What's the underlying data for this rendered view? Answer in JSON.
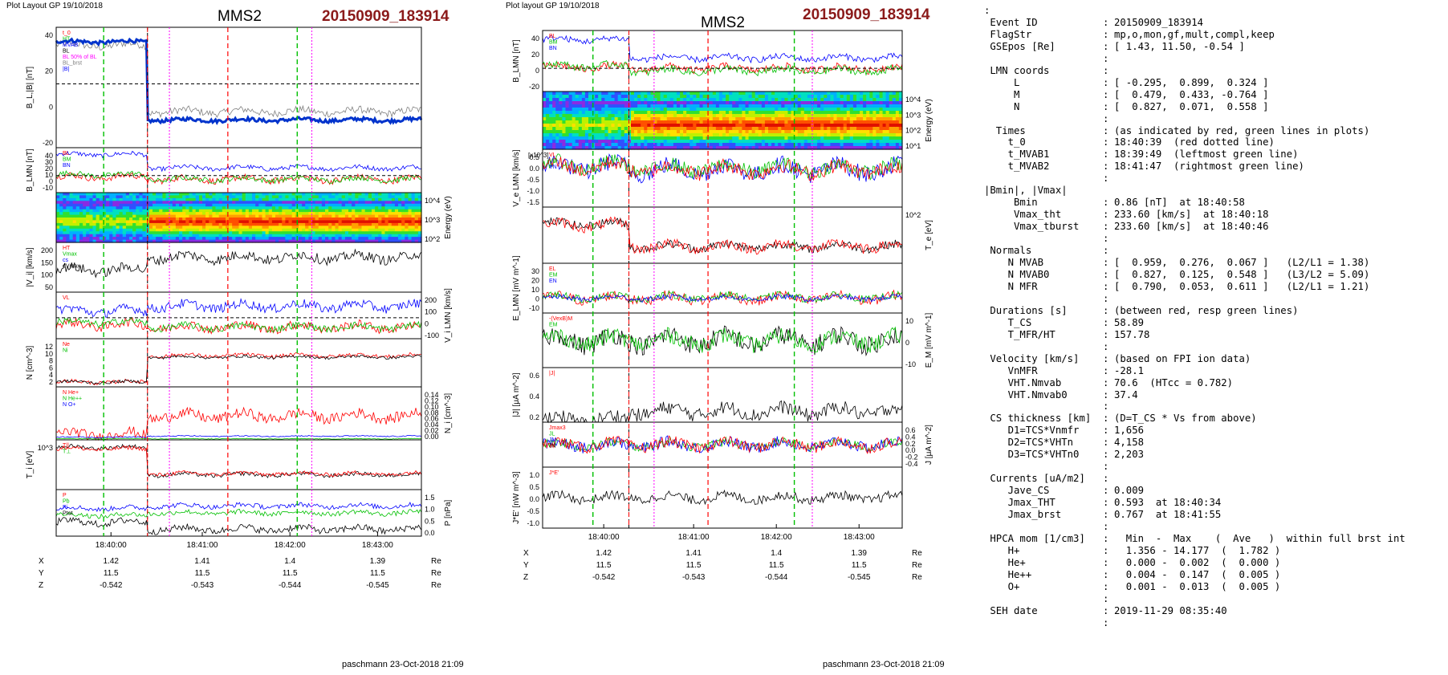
{
  "left_figure": {
    "layout_label": "Plot Layout GP 19/10/2018",
    "spacecraft": "MMS2",
    "event": "20150909_183914",
    "footer": "paschmann 23-Oct-2018 21:09"
  },
  "middle_figure": {
    "layout_label": "Plot layout GP 19/10/2018",
    "spacecraft": "MMS2",
    "event": "20150909_183914",
    "footer": "paschmann 23-Oct-2018 21:09"
  },
  "colors": {
    "red": "#ff0000",
    "green": "#00c000",
    "blue": "#0000ff",
    "black": "#000000",
    "magenta": "#ff00ff",
    "gray": "#808080",
    "thick_blue": "#0033cc",
    "event_title": "#8b1a1a"
  },
  "time_ticks": [
    "18:40:00",
    "18:41:00",
    "18:42:00",
    "18:43:00"
  ],
  "ephemeris": {
    "rows": [
      {
        "name": "X",
        "values": [
          "1.42",
          "1.41",
          "1.4",
          "1.39"
        ],
        "unit": "Re"
      },
      {
        "name": "Y",
        "values": [
          "11.5",
          "11.5",
          "11.5",
          "11.5"
        ],
        "unit": "Re"
      },
      {
        "name": "Z",
        "values": [
          "-0.542",
          "-0.543",
          "-0.544",
          "-0.545"
        ],
        "unit": "Re"
      }
    ]
  },
  "chart_data": [
    {
      "type": "line",
      "panels": [
        {
          "ylabel": "B_L,|B| [nT]",
          "yticks": [
            "40",
            "20",
            "0",
            "-20"
          ],
          "legend": [
            "t_0",
            "HT",
            "MVAB",
            "BL",
            "BL 50% of BL",
            "BL_brst",
            "|B|"
          ]
        },
        {
          "ylabel": "B_LMN [nT]",
          "yticks": [
            "40",
            "30",
            "20",
            "10",
            "0",
            "-10"
          ],
          "legend": [
            "BL",
            "BM",
            "BN"
          ]
        },
        {
          "ylabel": "Energy (eV)",
          "yticks_right": [
            "10^4",
            "10^3",
            "10^2"
          ]
        },
        {
          "ylabel": "|V_i| [km/s]",
          "yticks": [
            "200",
            "150",
            "100",
            "50"
          ],
          "legend": [
            "HT",
            "Vmax",
            "cs",
            "dVmax"
          ]
        },
        {
          "ylabel": "V_i LMN [km/s]",
          "yticks_right": [
            "200",
            "100",
            "0",
            "-100"
          ],
          "legend": [
            "VL"
          ]
        },
        {
          "ylabel": "N [cm^-3]",
          "yticks": [
            "12",
            "10",
            "8",
            "6",
            "4",
            "2"
          ],
          "legend": [
            "Ne",
            "Ni"
          ]
        },
        {
          "ylabel": "N_i [cm^-3]",
          "yticks_right": [
            "0.14",
            "0.12",
            "0.10",
            "0.08",
            "0.06",
            "0.04",
            "0.02",
            "0.00"
          ],
          "legend": [
            "N He+",
            "N He++",
            "N O+"
          ]
        },
        {
          "ylabel": "T_i [eV]",
          "yticks": [
            "10^3"
          ],
          "legend": [
            "T||",
            "T⊥"
          ]
        },
        {
          "ylabel": "P [nPa]",
          "yticks_right": [
            "1.5",
            "1.0",
            "0.5",
            "0.0"
          ],
          "legend": [
            "P",
            "Pb",
            "Pi",
            "Ptot"
          ]
        }
      ]
    },
    {
      "type": "line",
      "panels": [
        {
          "ylabel": "B_LMN [nT]",
          "yticks": [
            "40",
            "20",
            "0",
            "-20"
          ],
          "legend": [
            "BL",
            "BM",
            "BN"
          ]
        },
        {
          "ylabel": "Energy (eV)",
          "yticks_right": [
            "10^4",
            "10^3",
            "10^2",
            "10^1"
          ]
        },
        {
          "ylabel": "V_e LMN [km/s]",
          "scale_label": "[x10^3]",
          "yticks": [
            "0.5",
            "0.0",
            "-0.5",
            "-1.0",
            "-1.5"
          ],
          "legend": [
            "VL",
            "VM",
            "VN"
          ]
        },
        {
          "ylabel": "T_e [eV]",
          "yticks_right": [
            "10^2"
          ]
        },
        {
          "ylabel": "E_LMN [mV m^-1]",
          "yticks": [
            "30",
            "20",
            "10",
            "0",
            "-10"
          ],
          "legend": [
            "EL",
            "EM",
            "EN"
          ]
        },
        {
          "ylabel": "E_M [mV m^-1]",
          "yticks_right": [
            "10",
            "0",
            "-10"
          ],
          "legend": [
            "-(VexB)M",
            "EM"
          ]
        },
        {
          "ylabel": "|J| [μA m^-2]",
          "yticks": [
            "0.6",
            "0.4",
            "0.2"
          ],
          "legend": [
            "|J|"
          ]
        },
        {
          "ylabel": "J [μA m^-2]",
          "yticks_right": [
            "0.6",
            "0.4",
            "0.2",
            "0.0",
            "-0.2",
            "-0.4"
          ],
          "legend": [
            "Jmax3",
            "JL",
            "JM",
            "JN"
          ]
        },
        {
          "ylabel": "J*E' [nW m^-3]",
          "yticks": [
            "1.0",
            "0.5",
            "0.0",
            "-0.5",
            "-1.0"
          ],
          "legend": [
            "J*E'"
          ]
        }
      ]
    }
  ],
  "info_panel": {
    "rows": [
      {
        "k": ":",
        "s": "",
        "v": ""
      },
      {
        "k": " Event ID",
        "s": ":",
        "v": "20150909_183914"
      },
      {
        "k": " FlagStr",
        "s": ":",
        "v": "mp,o,mon,gf,mult,compl,keep"
      },
      {
        "k": " GSEpos [Re]",
        "s": ":",
        "v": "[ 1.43, 11.50, -0.54 ]"
      },
      {
        "k": "",
        "s": ":",
        "v": ""
      },
      {
        "k": " LMN coords",
        "s": ":",
        "v": ""
      },
      {
        "k": "     L",
        "s": ":",
        "v": "[ -0.295,  0.899,  0.324 ]"
      },
      {
        "k": "     M",
        "s": ":",
        "v": "[  0.479,  0.433, -0.764 ]"
      },
      {
        "k": "     N",
        "s": ":",
        "v": "[  0.827,  0.071,  0.558 ]"
      },
      {
        "k": "",
        "s": ":",
        "v": ""
      },
      {
        "k": "  Times",
        "s": ":",
        "v": "(as indicated by red, green lines in plots)"
      },
      {
        "k": "    t_0",
        "s": ":",
        "v": "18:40:39  (red dotted line)"
      },
      {
        "k": "    t_MVAB1",
        "s": ":",
        "v": "18:39:49  (leftmost green line)"
      },
      {
        "k": "    t_MVAB2",
        "s": ":",
        "v": "18:41:47  (rightmost green line)"
      },
      {
        "k": "",
        "s": ":",
        "v": ""
      },
      {
        "k": "|Bmin|, |Vmax|",
        "s": "",
        "v": ""
      },
      {
        "k": "     Bmin",
        "s": ":",
        "v": "0.86 [nT]  at 18:40:58"
      },
      {
        "k": "     Vmax_tht",
        "s": ":",
        "v": "233.60 [km/s]  at 18:40:18"
      },
      {
        "k": "     Vmax_tburst",
        "s": ":",
        "v": "233.60 [km/s]  at 18:40:46"
      },
      {
        "k": "",
        "s": ":",
        "v": ""
      },
      {
        "k": " Normals",
        "s": ":",
        "v": ""
      },
      {
        "k": "    N MVAB",
        "s": ":",
        "v": "[  0.959,  0.276,  0.067 ]   (L2/L1 = 1.38)"
      },
      {
        "k": "    N MVAB0",
        "s": ":",
        "v": "[  0.827,  0.125,  0.548 ]   (L3/L2 = 5.09)"
      },
      {
        "k": "    N MFR",
        "s": ":",
        "v": "[  0.790,  0.053,  0.611 ]   (L2/L1 = 1.21)"
      },
      {
        "k": "",
        "s": ":",
        "v": ""
      },
      {
        "k": " Durations [s]",
        "s": ":",
        "v": "(between red, resp green lines)"
      },
      {
        "k": "    T_CS",
        "s": ":",
        "v": "58.89"
      },
      {
        "k": "    T_MFR/HT",
        "s": ":",
        "v": "157.78"
      },
      {
        "k": "",
        "s": ":",
        "v": ""
      },
      {
        "k": " Velocity [km/s]",
        "s": ":",
        "v": "(based on FPI ion data)"
      },
      {
        "k": "    VnMFR",
        "s": ":",
        "v": "-28.1"
      },
      {
        "k": "    VHT.Nmvab",
        "s": ":",
        "v": "70.6  (HTcc = 0.782)"
      },
      {
        "k": "    VHT.Nmvab0",
        "s": ":",
        "v": "37.4"
      },
      {
        "k": "",
        "s": ":",
        "v": ""
      },
      {
        "k": " CS thickness [km]",
        "s": ":",
        "v": "(D=T_CS * Vs from above)"
      },
      {
        "k": "    D1=TCS*Vnmfr",
        "s": ":",
        "v": "1,656"
      },
      {
        "k": "    D2=TCS*VHTn",
        "s": ":",
        "v": "4,158"
      },
      {
        "k": "    D3=TCS*VHTn0",
        "s": ":",
        "v": "2,203"
      },
      {
        "k": "",
        "s": ":",
        "v": ""
      },
      {
        "k": " Currents [uA/m2]",
        "s": ":",
        "v": ""
      },
      {
        "k": "    Jave_CS",
        "s": ":",
        "v": "0.009"
      },
      {
        "k": "    Jmax_THT",
        "s": ":",
        "v": "0.593  at 18:40:34"
      },
      {
        "k": "    Jmax_brst",
        "s": ":",
        "v": "0.767  at 18:41:55"
      },
      {
        "k": "",
        "s": ":",
        "v": ""
      },
      {
        "k": " HPCA mom [1/cm3]",
        "s": ":",
        "v": "  Min  -  Max    (  Ave   )  within full brst int"
      },
      {
        "k": "    H+",
        "s": ":",
        "v": "  1.356 - 14.177  (  1.782 )"
      },
      {
        "k": "    He+",
        "s": ":",
        "v": "  0.000 -  0.002  (  0.000 )"
      },
      {
        "k": "    He++",
        "s": ":",
        "v": "  0.004 -  0.147  (  0.005 )"
      },
      {
        "k": "    O+",
        "s": ":",
        "v": "  0.001 -  0.013  (  0.005 )"
      },
      {
        "k": "",
        "s": ":",
        "v": ""
      },
      {
        "k": " SEH date",
        "s": ":",
        "v": "2019-11-29 08:35:40"
      },
      {
        "k": "",
        "s": ":",
        "v": ""
      }
    ]
  }
}
